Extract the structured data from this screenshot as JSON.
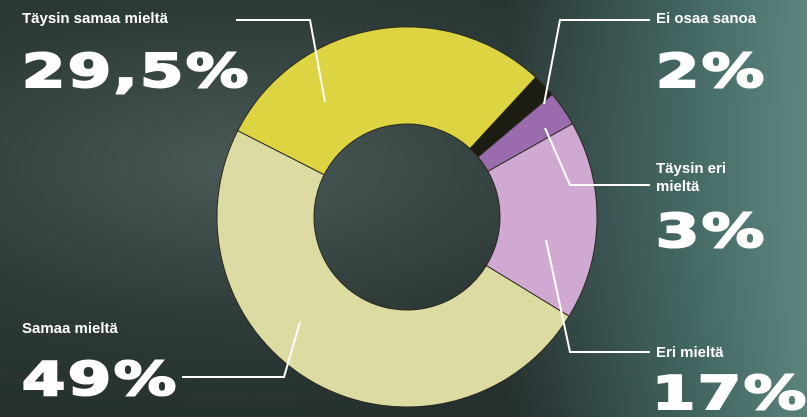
{
  "chart_data": {
    "type": "donut",
    "categories": [
      "Täysin samaa mieltä",
      "Ei osaa sanoa",
      "Täysin eri mieltä",
      "Eri mieltä",
      "Samaa mieltä"
    ],
    "values": [
      29.5,
      2,
      3,
      17,
      49
    ],
    "value_labels": [
      "29,5%",
      "2%",
      "3%",
      "17%",
      "49%"
    ],
    "colors": [
      "#dcd440",
      "#1c1c12",
      "#9a6cae",
      "#d0a9d2",
      "#dcdba2"
    ]
  }
}
